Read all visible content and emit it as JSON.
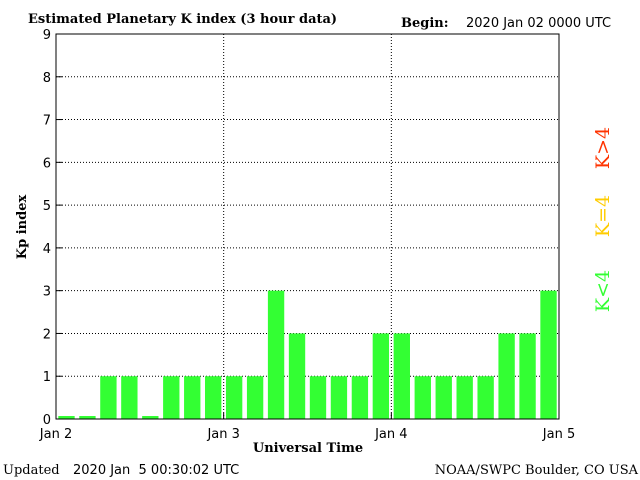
{
  "header": {
    "title": "Estimated Planetary K index (3 hour data)",
    "begin_label": "Begin:",
    "begin_value": "2020 Jan 02 0000 UTC"
  },
  "footer": {
    "updated_label": "Updated",
    "updated_value": "2020 Jan  5 00:30:02 UTC",
    "credit": "NOAA/SWPC Boulder, CO USA"
  },
  "legend": {
    "high": {
      "label": "K>4",
      "color": "#ff3300"
    },
    "equal": {
      "label": "K=4",
      "color": "#ffcc00"
    },
    "low": {
      "label": "K<4",
      "color": "#33ff33"
    }
  },
  "chart_data": {
    "type": "bar",
    "xlabel": "Universal Time",
    "ylabel": "Kp index",
    "ylim": [
      0,
      9
    ],
    "yticks": [
      0,
      1,
      2,
      3,
      4,
      5,
      6,
      7,
      8,
      9
    ],
    "grid": "dotted",
    "xticks": [
      "Jan 2",
      "Jan 3",
      "Jan 4",
      "Jan 5"
    ],
    "bar_color": "#33ff33",
    "values": [
      0.07,
      0.07,
      1,
      1,
      0.07,
      1,
      1,
      1,
      1,
      1,
      3,
      2,
      1,
      1,
      1,
      2,
      2,
      1,
      1,
      1,
      1,
      2,
      2,
      3
    ]
  }
}
